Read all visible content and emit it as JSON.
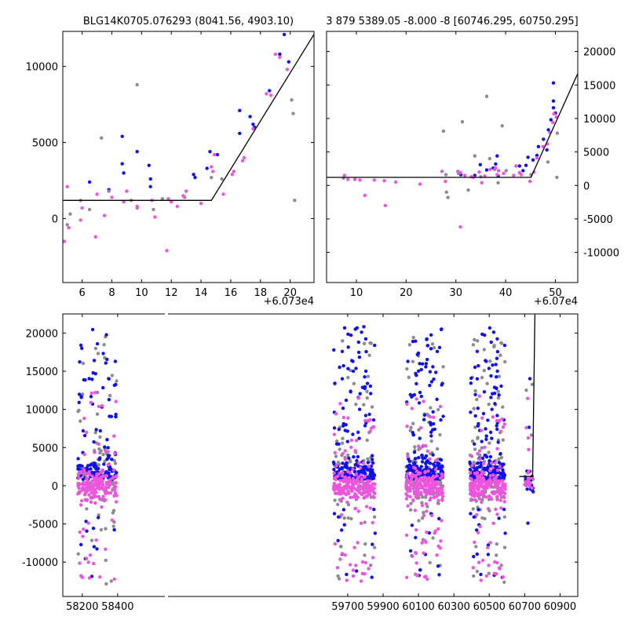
{
  "colors": {
    "blue": "#1010ee",
    "gray": "#8c8c8c",
    "pink": "#ee55dd",
    "line": "#000000"
  },
  "chart_data": [
    {
      "type": "scatter",
      "title": "BLG14K0705.076293 (8041.56, 4903.10)",
      "x_offset_label": "+6.073e4",
      "xlim": [
        4.7,
        21.6
      ],
      "ylim": [
        -4200,
        12300
      ],
      "xticks": [
        6,
        8,
        10,
        12,
        14,
        16,
        18,
        20
      ],
      "yticks": [
        0,
        5000,
        10000
      ],
      "yaxis_side": "left",
      "model": {
        "baseline": 1200,
        "t0": 14.7,
        "slope": 1580
      },
      "series": [
        {
          "name": "blue",
          "color": "blue",
          "points": [
            [
              6.5,
              2400
            ],
            [
              7.8,
              1900
            ],
            [
              8.7,
              5400
            ],
            [
              8.7,
              3600
            ],
            [
              8.8,
              3000
            ],
            [
              9.7,
              4400
            ],
            [
              10.5,
              3500
            ],
            [
              10.6,
              2600
            ],
            [
              10.6,
              2100
            ],
            [
              13.5,
              2900
            ],
            [
              13.6,
              2700
            ],
            [
              14.4,
              3300
            ],
            [
              14.6,
              4400
            ],
            [
              15.1,
              4200
            ],
            [
              16.6,
              7100
            ],
            [
              16.6,
              5600
            ],
            [
              17.3,
              6700
            ],
            [
              17.5,
              6200
            ],
            [
              17.6,
              6000
            ],
            [
              18.6,
              8400
            ],
            [
              19.3,
              10800
            ],
            [
              19.6,
              12100
            ],
            [
              19.9,
              10300
            ]
          ]
        },
        {
          "name": "gray",
          "color": "gray",
          "points": [
            [
              5.0,
              -400
            ],
            [
              5.2,
              300
            ],
            [
              5.9,
              1200
            ],
            [
              6.5,
              600
            ],
            [
              7.3,
              5300
            ],
            [
              7.8,
              1800
            ],
            [
              9.3,
              1200
            ],
            [
              9.7,
              8800
            ],
            [
              10.8,
              600
            ],
            [
              11.4,
              1300
            ],
            [
              12.9,
              1400
            ],
            [
              14.7,
              2700
            ],
            [
              15.4,
              2600
            ],
            [
              20.1,
              7800
            ],
            [
              20.2,
              6900
            ],
            [
              20.3,
              1200
            ]
          ]
        },
        {
          "name": "pink",
          "color": "pink",
          "points": [
            [
              4.8,
              -1500
            ],
            [
              5.0,
              2100
            ],
            [
              5.1,
              -600
            ],
            [
              5.9,
              -100
            ],
            [
              6.0,
              700
            ],
            [
              6.9,
              -1200
            ],
            [
              7.0,
              1600
            ],
            [
              7.5,
              200
            ],
            [
              8.0,
              1400
            ],
            [
              8.8,
              1100
            ],
            [
              9.0,
              1800
            ],
            [
              9.7,
              800
            ],
            [
              9.7,
              700
            ],
            [
              10.7,
              1200
            ],
            [
              10.9,
              100
            ],
            [
              11.7,
              -2100
            ],
            [
              11.8,
              1300
            ],
            [
              12.0,
              1100
            ],
            [
              12.4,
              800
            ],
            [
              12.8,
              1500
            ],
            [
              13.0,
              1800
            ],
            [
              14.0,
              1000
            ],
            [
              14.7,
              3400
            ],
            [
              14.8,
              3100
            ],
            [
              14.9,
              4200
            ],
            [
              15.5,
              1600
            ],
            [
              16.1,
              2900
            ],
            [
              16.2,
              3100
            ],
            [
              16.8,
              3800
            ],
            [
              16.9,
              4000
            ],
            [
              17.5,
              5900
            ],
            [
              18.4,
              8200
            ],
            [
              18.7,
              8100
            ],
            [
              19.0,
              10800
            ],
            [
              19.3,
              10600
            ],
            [
              19.8,
              9800
            ]
          ]
        }
      ]
    },
    {
      "type": "scatter",
      "title": "3 879 5389.05 -8.000 -8 [60746.295, 60750.295]",
      "x_offset_label": "+6.07e4",
      "xlim": [
        4,
        54.5
      ],
      "ylim": [
        -14500,
        23000
      ],
      "xticks": [
        10,
        20,
        30,
        40,
        50
      ],
      "yticks": [
        -10000,
        -5000,
        0,
        5000,
        10000,
        15000,
        20000
      ],
      "yaxis_side": "right",
      "model": {
        "baseline": 1200,
        "t0": 45.1,
        "slope": 1650
      },
      "series": [
        {
          "name": "blue",
          "color": "blue",
          "points": [
            [
              31.0,
              1600
            ],
            [
              33.8,
              1500
            ],
            [
              34.9,
              3100
            ],
            [
              36.2,
              2300
            ],
            [
              37.5,
              2600
            ],
            [
              38.0,
              3200
            ],
            [
              38.3,
              4400
            ],
            [
              38.5,
              1400
            ],
            [
              42.8,
              2900
            ],
            [
              43.5,
              2200
            ],
            [
              44.1,
              3000
            ],
            [
              44.5,
              4200
            ],
            [
              45.5,
              3800
            ],
            [
              46.3,
              4500
            ],
            [
              46.6,
              5800
            ],
            [
              47.6,
              6900
            ],
            [
              48.3,
              5300
            ],
            [
              48.6,
              8300
            ],
            [
              49.1,
              9800
            ],
            [
              49.6,
              11600
            ],
            [
              49.6,
              12600
            ],
            [
              49.6,
              15300
            ],
            [
              50.0,
              10800
            ]
          ]
        },
        {
          "name": "gray",
          "color": "gray",
          "points": [
            [
              7.4,
              1100
            ],
            [
              27.5,
              8100
            ],
            [
              28.0,
              1600
            ],
            [
              28.1,
              -1000
            ],
            [
              28.4,
              -1800
            ],
            [
              30.5,
              1800
            ],
            [
              31.3,
              9500
            ],
            [
              32.5,
              -700
            ],
            [
              33.8,
              4400
            ],
            [
              35.0,
              1300
            ],
            [
              36.2,
              13300
            ],
            [
              36.8,
              4000
            ],
            [
              37.8,
              2400
            ],
            [
              38.5,
              400
            ],
            [
              39.3,
              8900
            ],
            [
              40.1,
              2200
            ],
            [
              45.1,
              1600
            ],
            [
              48.5,
              3500
            ],
            [
              50.4,
              7800
            ],
            [
              50.3,
              1200
            ]
          ]
        },
        {
          "name": "pink",
          "color": "pink",
          "points": [
            [
              7.6,
              1500
            ],
            [
              8.3,
              900
            ],
            [
              9.7,
              900
            ],
            [
              10.7,
              800
            ],
            [
              11.7,
              -1500
            ],
            [
              13.6,
              800
            ],
            [
              15.6,
              700
            ],
            [
              15.8,
              -3000
            ],
            [
              17.9,
              500
            ],
            [
              22.8,
              200
            ],
            [
              27.2,
              2100
            ],
            [
              27.9,
              600
            ],
            [
              30.4,
              2100
            ],
            [
              30.9,
              1900
            ],
            [
              30.9,
              -6200
            ],
            [
              31.8,
              1500
            ],
            [
              33.1,
              1300
            ],
            [
              33.5,
              1200
            ],
            [
              34.7,
              2000
            ],
            [
              35.2,
              400
            ],
            [
              35.8,
              1400
            ],
            [
              36.9,
              2400
            ],
            [
              38.0,
              2600
            ],
            [
              38.3,
              1600
            ],
            [
              38.6,
              2200
            ],
            [
              39.6,
              1800
            ],
            [
              41.6,
              1500
            ],
            [
              42.1,
              2900
            ],
            [
              42.8,
              1900
            ],
            [
              43.1,
              1600
            ],
            [
              44.9,
              600
            ],
            [
              45.7,
              2000
            ],
            [
              46.3,
              4100
            ],
            [
              47.5,
              5800
            ],
            [
              48.4,
              6200
            ],
            [
              48.9,
              7900
            ],
            [
              49.5,
              9400
            ],
            [
              49.7,
              10700
            ],
            [
              50.2,
              10200
            ]
          ]
        }
      ]
    },
    {
      "type": "scatter",
      "title": "",
      "xlim": [
        58090,
        61000
      ],
      "ylim": [
        -14500,
        22500
      ],
      "xticks": [
        58200,
        58400,
        59700,
        59900,
        60100,
        60300,
        60500,
        60700,
        60900
      ],
      "yticks": [
        -10000,
        -5000,
        0,
        5000,
        10000,
        15000,
        20000
      ],
      "yaxis_side": "left",
      "model": {
        "baseline": 1200,
        "start": 60670,
        "t0": 60745.1,
        "slope": 1650
      },
      "clusters": [
        {
          "x_from": 58175,
          "x_to": 58395,
          "n": 420
        },
        {
          "x_from": 59620,
          "x_to": 59855,
          "n": 520
        },
        {
          "x_from": 60030,
          "x_to": 60240,
          "n": 540
        },
        {
          "x_from": 60390,
          "x_to": 60590,
          "n": 520
        },
        {
          "x_from": 60700,
          "x_to": 60750,
          "n": 45
        }
      ]
    }
  ]
}
